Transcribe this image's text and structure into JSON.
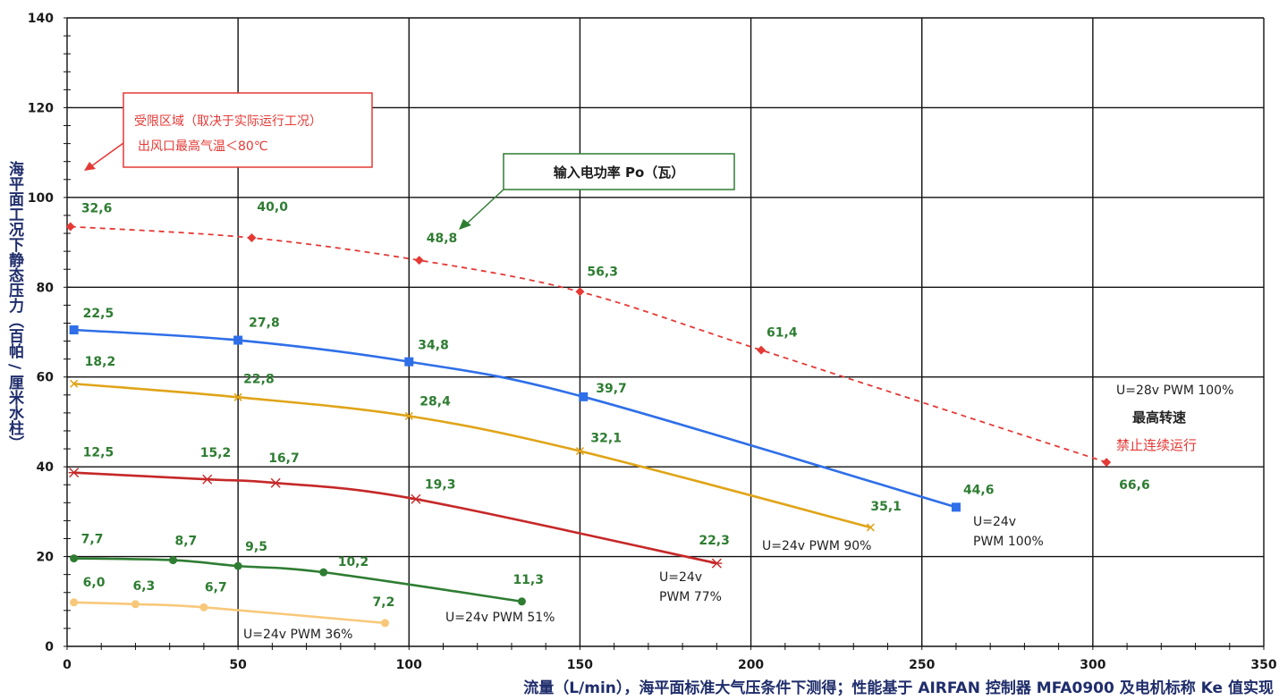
{
  "chart_data": {
    "type": "line",
    "xlabel": "流量（L/min），海平面标准大气压条件下测得；性能基于 AIRFAN 控制器 MFA0900 及电机标称 Ke 值实现",
    "ylabel": "海平面工况下静态压力（百帕 / 厘米水柱）",
    "xlim": [
      0,
      350
    ],
    "ylim": [
      0,
      140
    ],
    "xticks": [
      0,
      50,
      100,
      150,
      200,
      250,
      300,
      350
    ],
    "yticks": [
      0,
      20,
      40,
      60,
      80,
      100,
      120,
      140
    ],
    "grid": true,
    "series": [
      {
        "name": "U=28v PWM 100%",
        "color": "#e53935",
        "dashed": true,
        "marker": "diamond",
        "points": [
          [
            1,
            93.5
          ],
          [
            54,
            91
          ],
          [
            103,
            86
          ],
          [
            150,
            79
          ],
          [
            203,
            66
          ],
          [
            304,
            41
          ]
        ],
        "labels": [
          "32,6",
          "40,0",
          "48,8",
          "56,3",
          "61,4",
          "66,6"
        ]
      },
      {
        "name": "U=24v PWM 100%",
        "color": "#2f6fe8",
        "dashed": false,
        "marker": "square",
        "points": [
          [
            2,
            70.5
          ],
          [
            50,
            68.2
          ],
          [
            100,
            63.4
          ],
          [
            151,
            55.6
          ],
          [
            260,
            31
          ]
        ],
        "labels": [
          "22,5",
          "27,8",
          "34,8",
          "39,7",
          "44,6"
        ]
      },
      {
        "name": "U=24v PWM 90%",
        "color": "#e0a418",
        "dashed": false,
        "marker": "x",
        "points": [
          [
            2,
            58.5
          ],
          [
            50,
            55.5
          ],
          [
            100,
            51.3
          ],
          [
            150,
            43.5
          ],
          [
            235,
            26.5
          ]
        ],
        "labels": [
          "18,2",
          "22,8",
          "28,4",
          "32,1",
          "35,1"
        ]
      },
      {
        "name": "U=24v PWM 77%",
        "color": "#c62828",
        "dashed": false,
        "marker": "star",
        "points": [
          [
            2,
            38.7
          ],
          [
            41,
            37.2
          ],
          [
            61,
            36.4
          ],
          [
            102,
            32.8
          ],
          [
            190,
            18.5
          ]
        ],
        "labels": [
          "12,5",
          "15,2",
          "16,7",
          "19,3",
          "22,3"
        ]
      },
      {
        "name": "U=24v PWM 51%",
        "color": "#2e7d32",
        "dashed": false,
        "marker": "circle",
        "points": [
          [
            2,
            19.6
          ],
          [
            31,
            19.2
          ],
          [
            50,
            17.9
          ],
          [
            75,
            16.5
          ],
          [
            133,
            10
          ]
        ],
        "labels": [
          "7,7",
          "8,7",
          "9,5",
          "10,2",
          "11,3"
        ]
      },
      {
        "name": "U=24v PWM 36%",
        "color": "#f8c87a",
        "dashed": false,
        "marker": "circle",
        "points": [
          [
            2,
            9.8
          ],
          [
            20,
            9.4
          ],
          [
            40,
            8.7
          ],
          [
            93,
            5.2
          ]
        ],
        "labels": [
          "6,0",
          "6,3",
          "6,7",
          "7,2"
        ]
      }
    ]
  },
  "annotations": {
    "restricted_line1": "受限区域（取决于实际运行工况）",
    "restricted_line2": "出风口最高气温＜80℃",
    "power_box": "输入电功率 Po（瓦）",
    "s28_line1": "U=28v  PWM 100%",
    "s28_line2": "最高转速",
    "s28_line3": "禁止连续运行",
    "s24_100_line1": "U=24v",
    "s24_100_line2": "PWM 100%",
    "s24_90": "U=24v PWM 90%",
    "s24_77_line1": "U=24v",
    "s24_77_line2": "PWM 77%",
    "s24_51": "U=24v PWM 51%",
    "s24_36": "U=24v PWM 36%"
  }
}
